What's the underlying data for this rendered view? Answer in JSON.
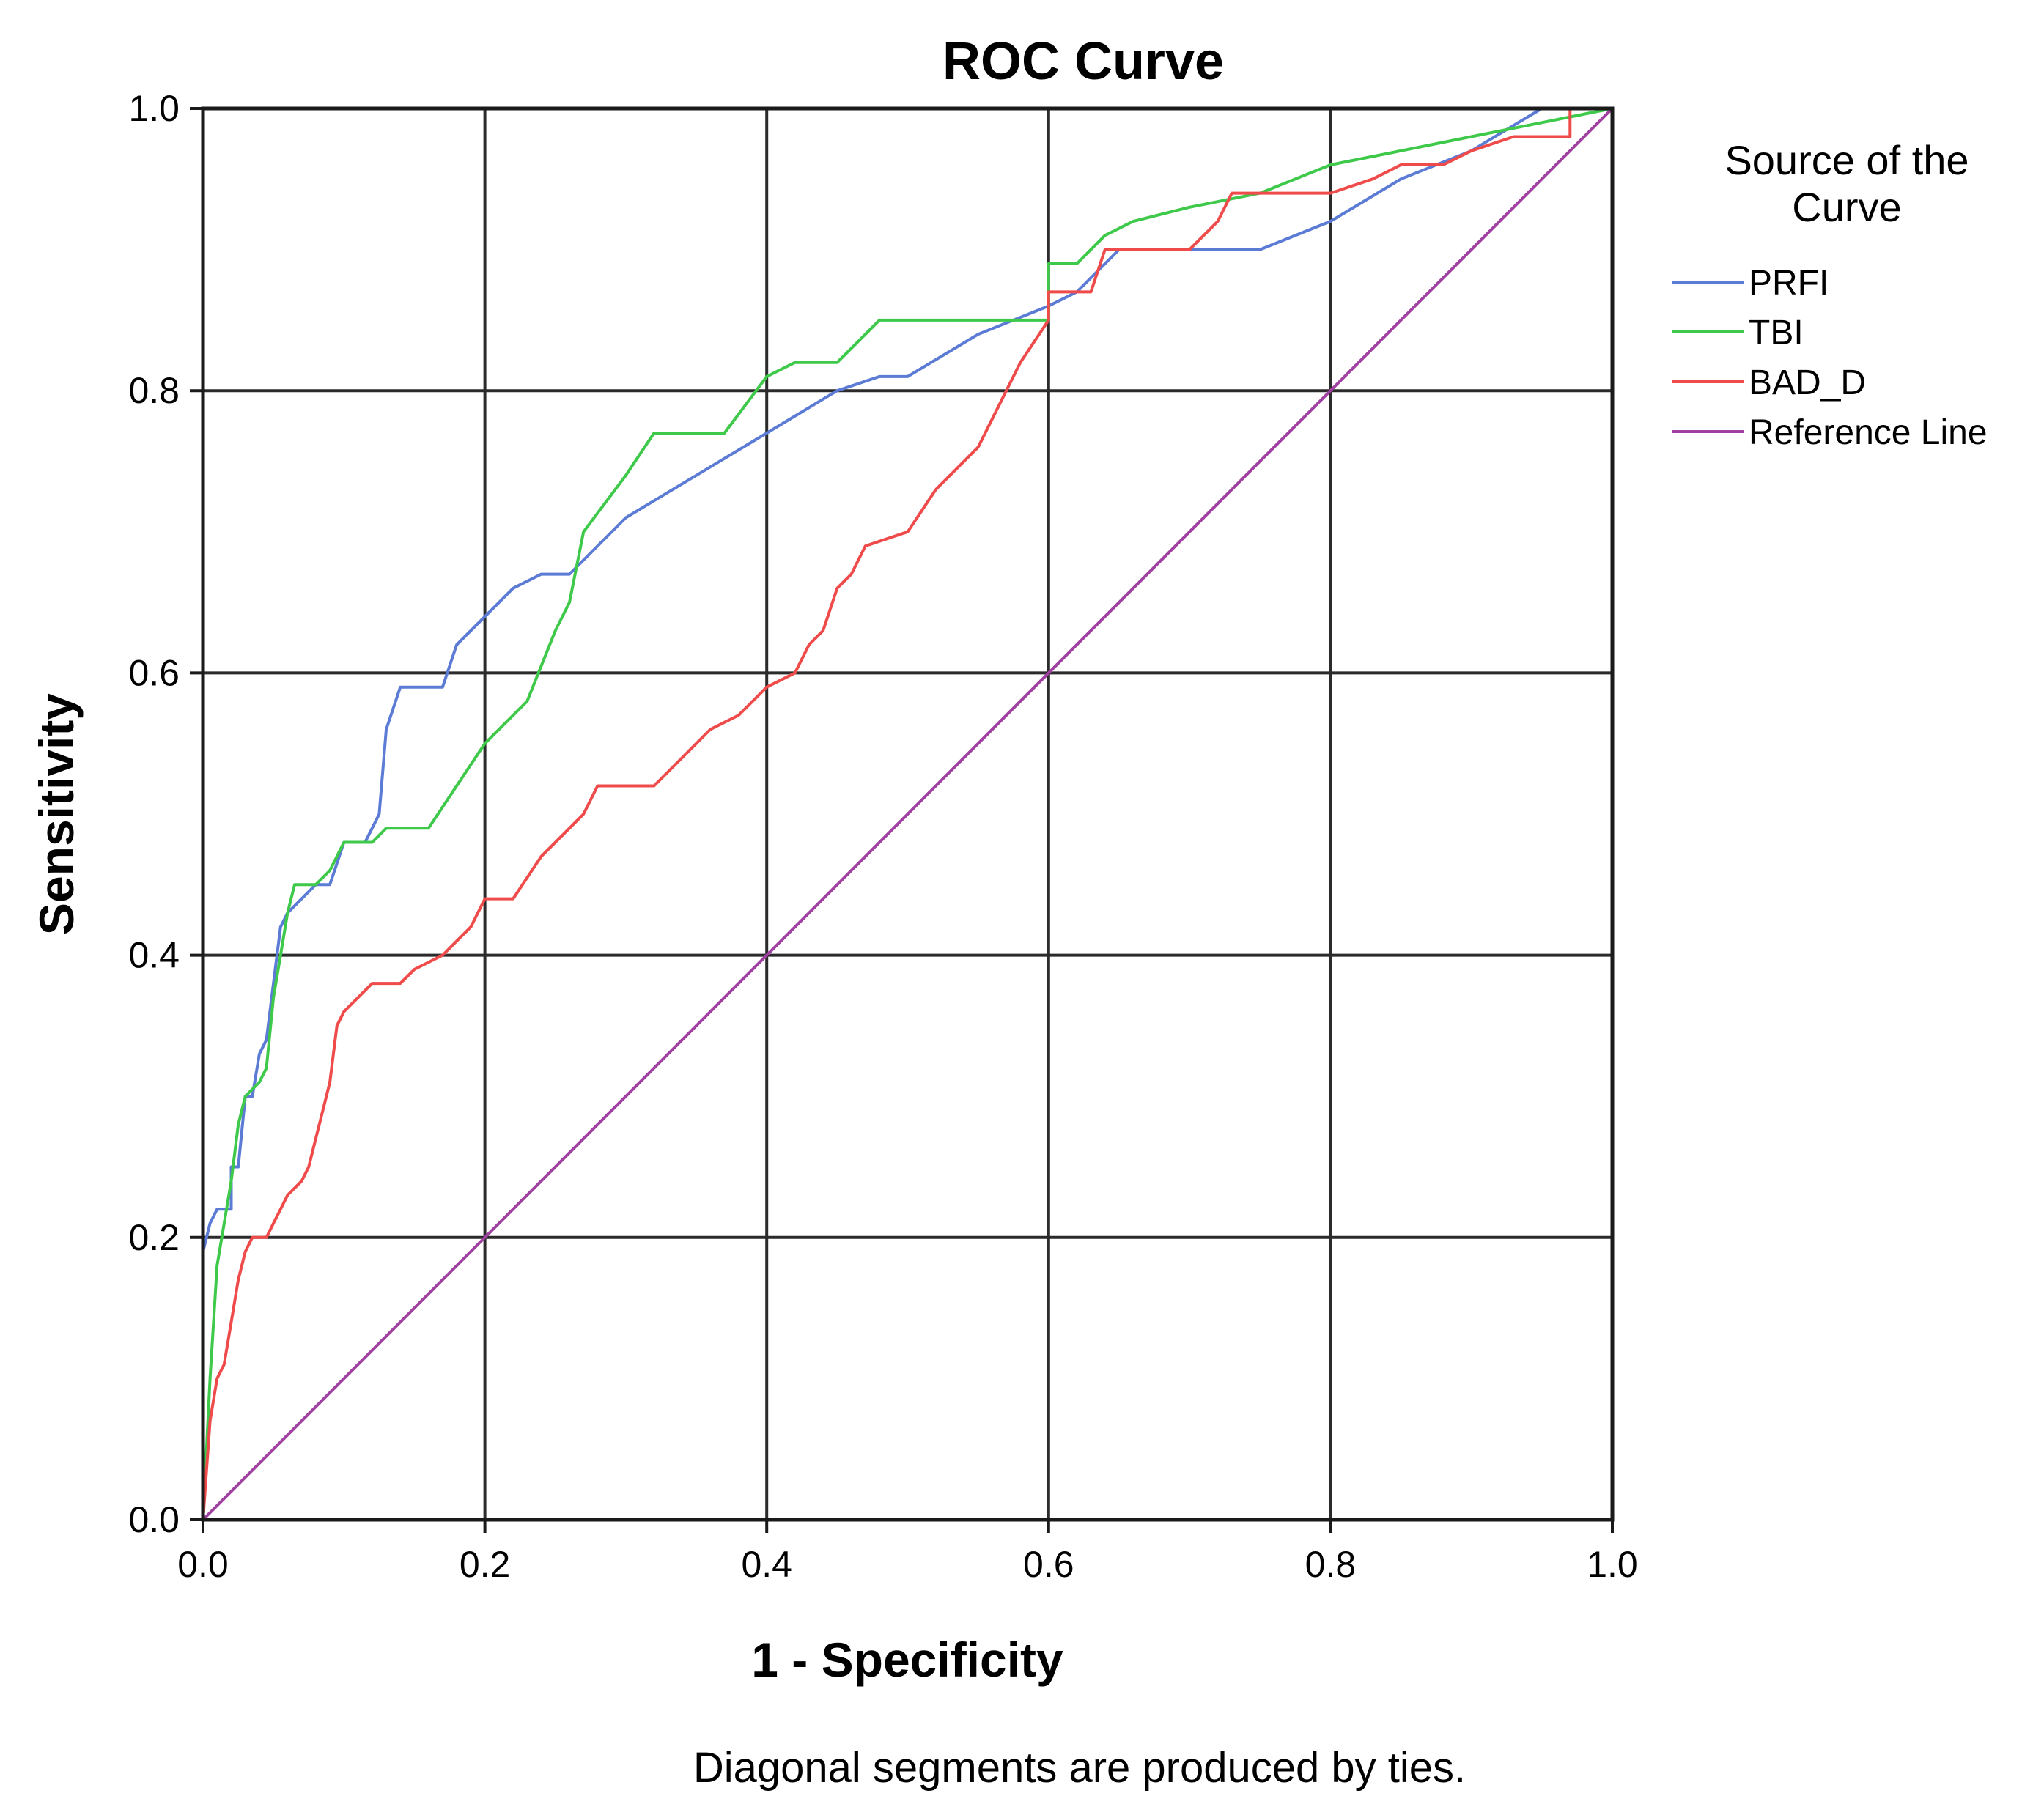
{
  "chart_data": {
    "type": "line",
    "title": "ROC Curve",
    "xlabel": "1 - Specificity",
    "ylabel": "Sensitivity",
    "xlim": [
      0,
      1
    ],
    "ylim": [
      0,
      1
    ],
    "grid": true,
    "x_ticks": [
      "0.0",
      "0.2",
      "0.4",
      "0.6",
      "0.8",
      "1.0"
    ],
    "y_ticks": [
      "0.0",
      "0.2",
      "0.4",
      "0.6",
      "0.8",
      "1.0"
    ],
    "legend_title": "Source of the Curve",
    "legend_position": "right",
    "footnote": "Diagonal segments are produced by ties.",
    "series": [
      {
        "name": "PRFI",
        "color": "#5b7bd5",
        "points": [
          [
            0,
            0
          ],
          [
            0,
            0.19
          ],
          [
            0.005,
            0.21
          ],
          [
            0.01,
            0.22
          ],
          [
            0.02,
            0.22
          ],
          [
            0.02,
            0.25
          ],
          [
            0.025,
            0.25
          ],
          [
            0.03,
            0.3
          ],
          [
            0.035,
            0.3
          ],
          [
            0.04,
            0.33
          ],
          [
            0.045,
            0.34
          ],
          [
            0.05,
            0.38
          ],
          [
            0.055,
            0.42
          ],
          [
            0.06,
            0.43
          ],
          [
            0.07,
            0.44
          ],
          [
            0.08,
            0.45
          ],
          [
            0.09,
            0.45
          ],
          [
            0.1,
            0.48
          ],
          [
            0.115,
            0.48
          ],
          [
            0.12,
            0.49
          ],
          [
            0.125,
            0.5
          ],
          [
            0.13,
            0.56
          ],
          [
            0.14,
            0.59
          ],
          [
            0.15,
            0.59
          ],
          [
            0.17,
            0.59
          ],
          [
            0.18,
            0.62
          ],
          [
            0.2,
            0.64
          ],
          [
            0.22,
            0.66
          ],
          [
            0.24,
            0.67
          ],
          [
            0.26,
            0.67
          ],
          [
            0.28,
            0.69
          ],
          [
            0.3,
            0.71
          ],
          [
            0.35,
            0.74
          ],
          [
            0.4,
            0.77
          ],
          [
            0.45,
            0.8
          ],
          [
            0.48,
            0.81
          ],
          [
            0.5,
            0.81
          ],
          [
            0.55,
            0.84
          ],
          [
            0.6,
            0.86
          ],
          [
            0.62,
            0.87
          ],
          [
            0.65,
            0.9
          ],
          [
            0.7,
            0.9
          ],
          [
            0.75,
            0.9
          ],
          [
            0.8,
            0.92
          ],
          [
            0.85,
            0.95
          ],
          [
            0.9,
            0.97
          ],
          [
            0.95,
            1.0
          ],
          [
            1.0,
            1.0
          ]
        ]
      },
      {
        "name": "TBI",
        "color": "#3ec94a",
        "points": [
          [
            0,
            0
          ],
          [
            0.005,
            0.1
          ],
          [
            0.01,
            0.18
          ],
          [
            0.02,
            0.24
          ],
          [
            0.025,
            0.28
          ],
          [
            0.03,
            0.3
          ],
          [
            0.04,
            0.31
          ],
          [
            0.045,
            0.32
          ],
          [
            0.05,
            0.37
          ],
          [
            0.055,
            0.4
          ],
          [
            0.06,
            0.43
          ],
          [
            0.065,
            0.45
          ],
          [
            0.08,
            0.45
          ],
          [
            0.09,
            0.46
          ],
          [
            0.1,
            0.48
          ],
          [
            0.12,
            0.48
          ],
          [
            0.13,
            0.49
          ],
          [
            0.15,
            0.49
          ],
          [
            0.16,
            0.49
          ],
          [
            0.18,
            0.52
          ],
          [
            0.2,
            0.55
          ],
          [
            0.23,
            0.58
          ],
          [
            0.25,
            0.63
          ],
          [
            0.26,
            0.65
          ],
          [
            0.27,
            0.7
          ],
          [
            0.3,
            0.74
          ],
          [
            0.32,
            0.77
          ],
          [
            0.34,
            0.77
          ],
          [
            0.37,
            0.77
          ],
          [
            0.4,
            0.81
          ],
          [
            0.42,
            0.82
          ],
          [
            0.45,
            0.82
          ],
          [
            0.48,
            0.85
          ],
          [
            0.5,
            0.85
          ],
          [
            0.55,
            0.85
          ],
          [
            0.58,
            0.85
          ],
          [
            0.6,
            0.85
          ],
          [
            0.6,
            0.89
          ],
          [
            0.62,
            0.89
          ],
          [
            0.64,
            0.91
          ],
          [
            0.66,
            0.92
          ],
          [
            0.7,
            0.93
          ],
          [
            0.75,
            0.94
          ],
          [
            0.8,
            0.96
          ],
          [
            0.85,
            0.97
          ],
          [
            0.9,
            0.98
          ],
          [
            0.95,
            0.99
          ],
          [
            1.0,
            1.0
          ]
        ]
      },
      {
        "name": "BAD_D",
        "color": "#ef4b4b",
        "points": [
          [
            0,
            0
          ],
          [
            0.005,
            0.07
          ],
          [
            0.01,
            0.1
          ],
          [
            0.015,
            0.11
          ],
          [
            0.02,
            0.14
          ],
          [
            0.025,
            0.17
          ],
          [
            0.03,
            0.19
          ],
          [
            0.035,
            0.2
          ],
          [
            0.045,
            0.2
          ],
          [
            0.05,
            0.21
          ],
          [
            0.055,
            0.22
          ],
          [
            0.06,
            0.23
          ],
          [
            0.07,
            0.24
          ],
          [
            0.075,
            0.25
          ],
          [
            0.08,
            0.27
          ],
          [
            0.085,
            0.29
          ],
          [
            0.09,
            0.31
          ],
          [
            0.095,
            0.35
          ],
          [
            0.1,
            0.36
          ],
          [
            0.11,
            0.37
          ],
          [
            0.12,
            0.38
          ],
          [
            0.14,
            0.38
          ],
          [
            0.15,
            0.39
          ],
          [
            0.17,
            0.4
          ],
          [
            0.18,
            0.41
          ],
          [
            0.19,
            0.42
          ],
          [
            0.2,
            0.44
          ],
          [
            0.22,
            0.44
          ],
          [
            0.24,
            0.47
          ],
          [
            0.26,
            0.49
          ],
          [
            0.27,
            0.5
          ],
          [
            0.28,
            0.52
          ],
          [
            0.32,
            0.52
          ],
          [
            0.34,
            0.54
          ],
          [
            0.36,
            0.56
          ],
          [
            0.38,
            0.57
          ],
          [
            0.39,
            0.58
          ],
          [
            0.4,
            0.59
          ],
          [
            0.42,
            0.6
          ],
          [
            0.43,
            0.62
          ],
          [
            0.44,
            0.63
          ],
          [
            0.45,
            0.66
          ],
          [
            0.46,
            0.67
          ],
          [
            0.47,
            0.69
          ],
          [
            0.5,
            0.7
          ],
          [
            0.52,
            0.73
          ],
          [
            0.53,
            0.74
          ],
          [
            0.55,
            0.76
          ],
          [
            0.56,
            0.78
          ],
          [
            0.57,
            0.8
          ],
          [
            0.58,
            0.82
          ],
          [
            0.6,
            0.85
          ],
          [
            0.6,
            0.87
          ],
          [
            0.63,
            0.87
          ],
          [
            0.64,
            0.9
          ],
          [
            0.65,
            0.9
          ],
          [
            0.7,
            0.9
          ],
          [
            0.72,
            0.92
          ],
          [
            0.73,
            0.94
          ],
          [
            0.8,
            0.94
          ],
          [
            0.83,
            0.95
          ],
          [
            0.85,
            0.96
          ],
          [
            0.88,
            0.96
          ],
          [
            0.9,
            0.97
          ],
          [
            0.93,
            0.98
          ],
          [
            0.97,
            0.98
          ],
          [
            0.97,
            1.0
          ],
          [
            1.0,
            1.0
          ]
        ]
      },
      {
        "name": "Reference Line",
        "color": "#a040a0",
        "points": [
          [
            0,
            0
          ],
          [
            1,
            1
          ]
        ]
      }
    ]
  }
}
